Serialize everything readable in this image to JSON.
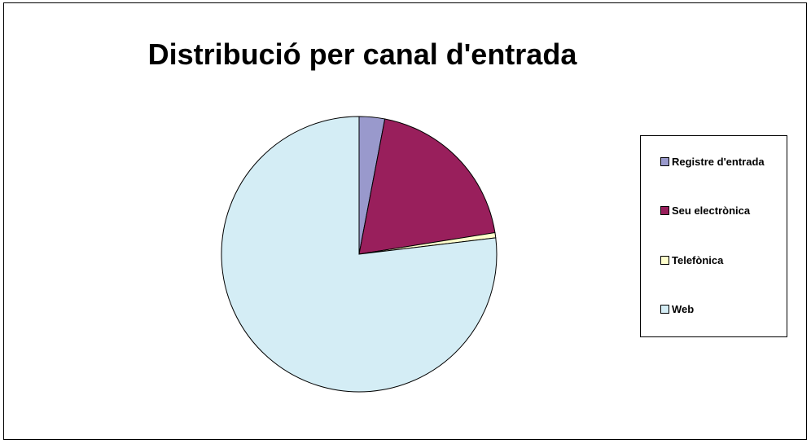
{
  "chart_data": {
    "type": "pie",
    "title": "Distribució per canal d'entrada",
    "categories": [
      "Registre d'entrada",
      "Seu electrònica",
      "Telefònica",
      "Web"
    ],
    "values": [
      3.0,
      19.5,
      0.6,
      76.9
    ],
    "colors": [
      "#9999cc",
      "#991f5c",
      "#ffffcc",
      "#d4edf5"
    ],
    "legend_position": "right"
  }
}
